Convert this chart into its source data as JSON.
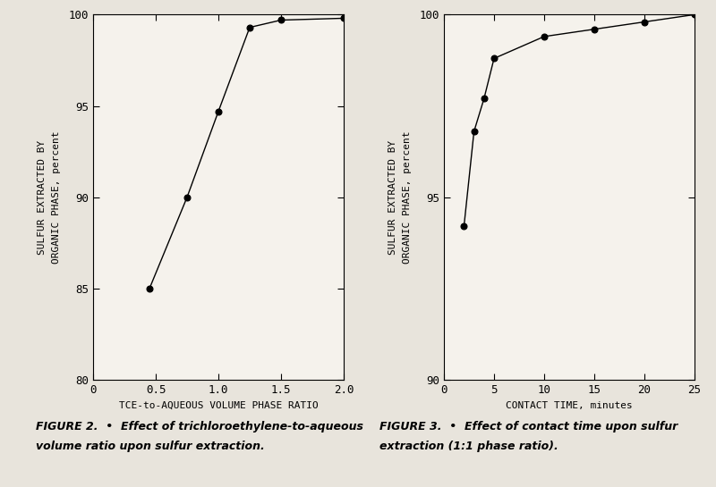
{
  "fig2": {
    "x": [
      0.45,
      0.75,
      1.0,
      1.25,
      1.5,
      2.0
    ],
    "y": [
      85.0,
      90.0,
      94.7,
      99.3,
      99.7,
      99.8
    ],
    "xlim": [
      0,
      2.0
    ],
    "ylim": [
      80,
      100
    ],
    "xticks": [
      0,
      0.5,
      1.0,
      1.5,
      2.0
    ],
    "xticklabels": [
      "0",
      "0.5",
      "1.0",
      "1.5",
      "2.0"
    ],
    "yticks": [
      80,
      85,
      90,
      95,
      100
    ],
    "yticklabels": [
      "80",
      "85",
      "90",
      "95",
      "100"
    ],
    "xlabel": "TCE-to-AQUEOUS VOLUME PHASE RATIO",
    "ylabel_line1": "SULFUR EXTRACTED BY",
    "ylabel_line2": "ORGANIC PHASE, percent",
    "caption_line1": "FIGURE 2.  •  Effect of trichloroethylene-to-aqueous",
    "caption_line2": "volume ratio upon sulfur extraction."
  },
  "fig3": {
    "x": [
      2,
      3,
      4,
      5,
      10,
      15,
      20,
      25
    ],
    "y": [
      94.2,
      96.8,
      97.7,
      98.8,
      99.4,
      99.6,
      99.8,
      100.0
    ],
    "xlim": [
      0,
      25
    ],
    "ylim": [
      90,
      100
    ],
    "xticks": [
      0,
      5,
      10,
      15,
      20,
      25
    ],
    "xticklabels": [
      "0",
      "5",
      "10",
      "15",
      "20",
      "25"
    ],
    "yticks": [
      90,
      95,
      100
    ],
    "yticklabels": [
      "90",
      "95",
      "100"
    ],
    "xlabel": "CONTACT TIME, minutes",
    "ylabel_line1": "SULFUR EXTRACTED BY",
    "ylabel_line2": "ORGANIC PHASE, percent",
    "caption_line1": "FIGURE 3.  •  Effect of contact time upon sulfur",
    "caption_line2": "extraction (1:1 phase ratio)."
  },
  "line_color": "#000000",
  "marker": "o",
  "marker_size": 5,
  "marker_facecolor": "#000000",
  "bg_color": "#e8e4dc",
  "plot_bg_color": "#f5f2ec",
  "fontsize_axis_label": 8,
  "fontsize_tick": 9,
  "fontsize_caption": 9,
  "fontsize_ylabel": 8
}
